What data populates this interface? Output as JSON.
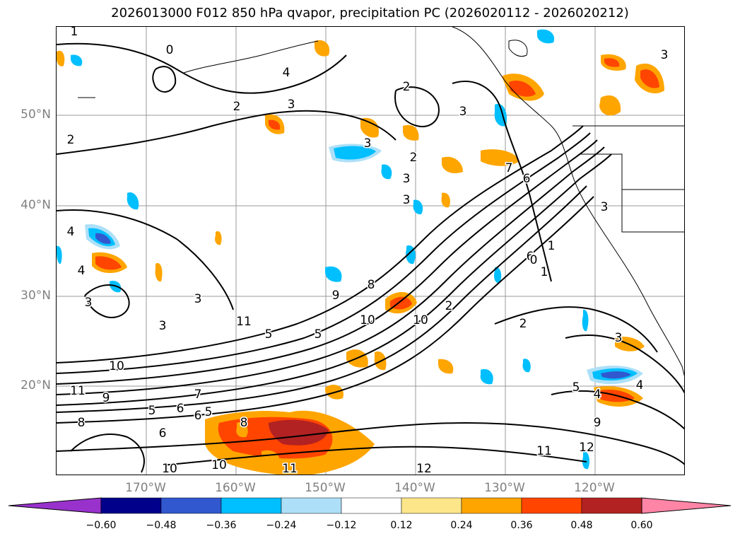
{
  "title": "2026013000 F012 850 hPa qvapor, precipitation PC (2026020112 - 2026020212)",
  "lat_labels": [
    "50°N",
    "40°N",
    "30°N",
    "20°N"
  ],
  "lon_labels": [
    "170°W",
    "160°W",
    "150°W",
    "140°W",
    "130°W",
    "120°W"
  ],
  "contour_labels": [
    "1",
    "0",
    "2",
    "3",
    "2",
    "3",
    "3",
    "2",
    "3",
    "4",
    "3",
    "2",
    "1",
    "7",
    "6",
    "6",
    "4",
    "3",
    "4",
    "5",
    "3",
    "3",
    "5",
    "5",
    "6",
    "8",
    "10",
    "10",
    "11",
    "9",
    "7",
    "6",
    "5",
    "6",
    "8",
    "10",
    "10",
    "11",
    "12",
    "11",
    "12",
    "9",
    "4",
    "5",
    "4",
    "3",
    "2",
    "2",
    "1",
    "0",
    "3",
    "3",
    "8",
    "9",
    "10",
    "11"
  ],
  "colorbar": {
    "ticks": [
      "−0.60",
      "−0.48",
      "−0.36",
      "−0.24",
      "−0.12",
      "0.12",
      "0.24",
      "0.36",
      "0.48",
      "0.60"
    ],
    "colors": [
      "#9932CC",
      "#00008B",
      "#3158CF",
      "#00BFFF",
      "#ADE0F8",
      "#FFFFFF",
      "#FDE68A",
      "#FFA500",
      "#FF4500",
      "#B22222",
      "#FF85A6"
    ]
  }
}
